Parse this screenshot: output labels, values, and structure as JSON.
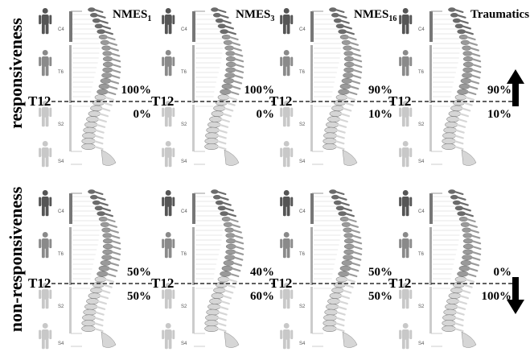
{
  "rows": [
    {
      "label": "responsiveness",
      "panels": [
        {
          "title": "NMES",
          "sub": "1",
          "above": "100%",
          "below": "0%"
        },
        {
          "title": "NMES",
          "sub": "3",
          "above": "100%",
          "below": "0%"
        },
        {
          "title": "NMES",
          "sub": "16",
          "above": "90%",
          "below": "10%"
        },
        {
          "title": "Traumatics",
          "sub": "",
          "above": "90%",
          "below": "10%"
        }
      ]
    },
    {
      "label": "non-responsiveness",
      "panels": [
        {
          "title": "",
          "sub": "",
          "above": "50%",
          "below": "50%"
        },
        {
          "title": "",
          "sub": "",
          "above": "40%",
          "below": "60%"
        },
        {
          "title": "",
          "sub": "",
          "above": "50%",
          "below": "50%"
        },
        {
          "title": "",
          "sub": "",
          "above": "0%",
          "below": "100%"
        }
      ]
    }
  ],
  "t12_label": "T12",
  "levels": [
    "C4",
    "T6",
    "S2",
    "S4"
  ],
  "colors": {
    "body_dark": "#555555",
    "body_mid": "#8a8a8a",
    "body_light": "#c8c8c8",
    "vertebra_dark": "#6b6b6b",
    "vertebra_mid": "#9a9a9a",
    "vertebra_light": "#d6d6d6"
  },
  "icons": {
    "up": "up-arrow-icon",
    "down": "down-arrow-icon"
  }
}
